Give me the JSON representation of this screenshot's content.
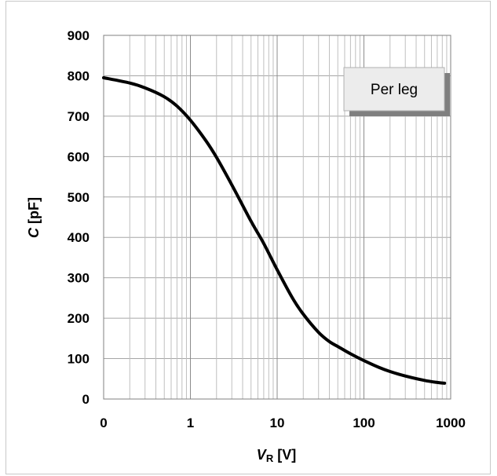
{
  "chart_data": {
    "type": "line",
    "x_scale": "log",
    "x_ticks": [
      0.1,
      1,
      10,
      100,
      1000
    ],
    "x_tick_labels": [
      "0",
      "1",
      "10",
      "100",
      "1000"
    ],
    "y_ticks": [
      0,
      100,
      200,
      300,
      400,
      500,
      600,
      700,
      800,
      900
    ],
    "ylim": [
      0,
      900
    ],
    "grid": true,
    "xlabel": {
      "main": "V",
      "sub": "R",
      "unit": " [V]"
    },
    "ylabel": {
      "main": "C",
      "unit": " [pF]"
    },
    "legend_box": {
      "text": "Per leg",
      "placement": "top-right"
    },
    "series": [
      {
        "color": "#000000",
        "x": [
          0.1,
          0.2,
          0.3,
          0.5,
          0.7,
          1.0,
          1.5,
          2.0,
          3.0,
          5.0,
          7.0,
          10,
          15,
          20,
          30,
          40,
          50,
          70,
          100,
          150,
          200,
          300,
          500,
          700,
          850
        ],
        "y": [
          795,
          782,
          770,
          748,
          725,
          690,
          640,
          598,
          530,
          440,
          385,
          320,
          250,
          210,
          165,
          142,
          130,
          112,
          95,
          78,
          68,
          57,
          46,
          41,
          39
        ]
      }
    ]
  }
}
